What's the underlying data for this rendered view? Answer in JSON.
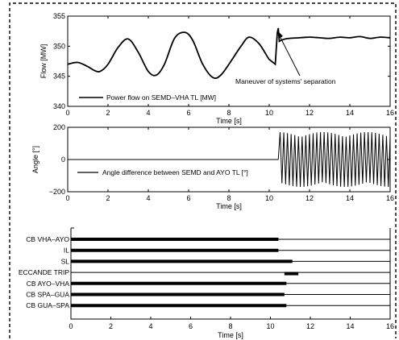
{
  "chart_data": [
    {
      "type": "line",
      "ylabel": "Flow [MW]",
      "xlabel": "Time [s]",
      "xlim": [
        0,
        16
      ],
      "ylim": [
        340,
        355
      ],
      "xticks": [
        "0",
        "2",
        "4",
        "6",
        "8",
        "10",
        "12",
        "14",
        "16"
      ],
      "yticks": [
        "340",
        "345",
        "350",
        "355"
      ],
      "legend": "Power flow on SEMD–VHA TL [MW]",
      "legend_placement": "bottom-left",
      "annotation": "Maneuver of systems' separation",
      "annotation_target": {
        "x": 10.4,
        "y": 353
      },
      "series": [
        {
          "x": [
            0,
            0.5,
            1.0,
            1.3,
            1.6,
            2.0,
            2.5,
            3.0,
            3.5,
            4.0,
            4.4,
            4.8,
            5.3,
            5.8,
            6.2,
            6.7,
            7.2,
            7.6,
            8.1,
            8.6,
            9.0,
            9.5,
            10.0,
            10.3,
            10.4,
            10.45,
            10.5,
            10.6,
            10.8,
            11.0,
            11.5,
            12.0,
            12.5,
            13.0,
            13.5,
            14.0,
            14.5,
            15.0,
            15.5,
            16.0
          ],
          "y": [
            347,
            347.3,
            346.6,
            346.0,
            345.8,
            347.0,
            349.8,
            351.2,
            349.0,
            345.8,
            345.2,
            347.0,
            351.3,
            352.3,
            351.0,
            347.0,
            344.8,
            345.2,
            347.5,
            350.0,
            351.5,
            350.4,
            347.8,
            347.0,
            352.2,
            353.0,
            350.8,
            351.0,
            351.2,
            351.3,
            351.4,
            351.5,
            351.4,
            351.3,
            351.5,
            351.4,
            351.6,
            351.3,
            351.5,
            351.4
          ]
        }
      ]
    },
    {
      "type": "line",
      "ylabel": "Angle [°]",
      "xlabel": "Time [s]",
      "xlim": [
        0,
        16
      ],
      "ylim": [
        -200,
        200
      ],
      "xticks": [
        "0",
        "2",
        "4",
        "6",
        "8",
        "10",
        "12",
        "14",
        "16"
      ],
      "yticks": [
        "−200",
        "0",
        "200"
      ],
      "legend": "Angle difference between SEMD and AYO TL [°]",
      "legend_placement": "bottom-center",
      "series": [
        {
          "constant_before_separation": {
            "x": [
              0,
              10.45
            ],
            "y": 0
          },
          "oscillation_after_separation": {
            "x_start": 10.45,
            "x_end": 16,
            "amplitude": 170,
            "cycles_per_second": 5.5
          }
        }
      ]
    },
    {
      "type": "timeline",
      "xlabel": "Time [s]",
      "xlim": [
        0,
        16
      ],
      "xticks": [
        "0",
        "2",
        "4",
        "6",
        "8",
        "10",
        "12",
        "14",
        "16"
      ],
      "rows": [
        {
          "label": "CB VHA–AYO",
          "closed_until": 10.4
        },
        {
          "label": "IL",
          "closed_until": 10.4
        },
        {
          "label": "SL",
          "closed_until": 11.1
        },
        {
          "label": "ECCANDE TRIP",
          "active_from": 10.7,
          "active_to": 11.4
        },
        {
          "label": "CB AYO–VHA",
          "closed_until": 10.8
        },
        {
          "label": "CB SPA–GUA",
          "closed_until": 10.7
        },
        {
          "label": "CB GUA–SPA",
          "closed_until": 10.8
        }
      ]
    }
  ]
}
